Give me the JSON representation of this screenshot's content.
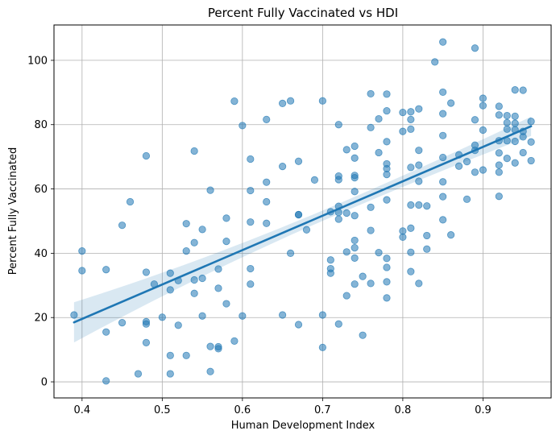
{
  "chart_data": {
    "type": "scatter",
    "title": "Percent Fully Vaccinated vs HDI",
    "xlabel": "Human Development Index",
    "ylabel": "Percent Fully Vaccinated",
    "xlim": [
      0.365,
      0.985
    ],
    "ylim": [
      -5,
      111
    ],
    "xticks": [
      0.4,
      0.5,
      0.6,
      0.7,
      0.8,
      0.9
    ],
    "yticks": [
      0,
      20,
      40,
      60,
      80,
      100
    ],
    "grid": true,
    "colors": {
      "points": "#1f77b4",
      "line": "#1f77b4",
      "band": "#1f77b4"
    },
    "regression": {
      "x": [
        0.39,
        0.96
      ],
      "y": [
        18.5,
        79.5
      ],
      "ci_upper": [
        25.0,
        82.5
      ],
      "ci_lower": [
        12.5,
        76.5
      ]
    },
    "points": [
      [
        0.39,
        20.8
      ],
      [
        0.4,
        40.7
      ],
      [
        0.4,
        34.6
      ],
      [
        0.43,
        34.9
      ],
      [
        0.43,
        15.5
      ],
      [
        0.43,
        0.3
      ],
      [
        0.45,
        48.7
      ],
      [
        0.45,
        18.4
      ],
      [
        0.46,
        56.0
      ],
      [
        0.47,
        2.5
      ],
      [
        0.48,
        70.3
      ],
      [
        0.48,
        34.1
      ],
      [
        0.48,
        18.7
      ],
      [
        0.48,
        18.0
      ],
      [
        0.48,
        12.2
      ],
      [
        0.49,
        30.4
      ],
      [
        0.5,
        20.1
      ],
      [
        0.51,
        33.8
      ],
      [
        0.51,
        28.6
      ],
      [
        0.51,
        8.2
      ],
      [
        0.51,
        2.5
      ],
      [
        0.52,
        31.5
      ],
      [
        0.52,
        17.6
      ],
      [
        0.53,
        49.2
      ],
      [
        0.53,
        40.7
      ],
      [
        0.53,
        8.2
      ],
      [
        0.54,
        71.8
      ],
      [
        0.54,
        43.3
      ],
      [
        0.54,
        31.7
      ],
      [
        0.54,
        27.5
      ],
      [
        0.55,
        47.4
      ],
      [
        0.55,
        32.2
      ],
      [
        0.55,
        20.5
      ],
      [
        0.56,
        59.6
      ],
      [
        0.56,
        11.0
      ],
      [
        0.56,
        3.2
      ],
      [
        0.57,
        35.1
      ],
      [
        0.57,
        29.1
      ],
      [
        0.57,
        10.9
      ],
      [
        0.57,
        10.3
      ],
      [
        0.58,
        50.9
      ],
      [
        0.58,
        43.7
      ],
      [
        0.58,
        24.3
      ],
      [
        0.59,
        87.3
      ],
      [
        0.59,
        12.7
      ],
      [
        0.6,
        79.7
      ],
      [
        0.6,
        20.5
      ],
      [
        0.61,
        69.3
      ],
      [
        0.61,
        59.5
      ],
      [
        0.61,
        49.7
      ],
      [
        0.61,
        35.2
      ],
      [
        0.61,
        30.4
      ],
      [
        0.63,
        81.6
      ],
      [
        0.63,
        62.1
      ],
      [
        0.63,
        56.0
      ],
      [
        0.63,
        49.3
      ],
      [
        0.65,
        86.6
      ],
      [
        0.65,
        67.0
      ],
      [
        0.65,
        20.8
      ],
      [
        0.66,
        87.4
      ],
      [
        0.66,
        40.0
      ],
      [
        0.67,
        68.6
      ],
      [
        0.67,
        52.0
      ],
      [
        0.67,
        52.0
      ],
      [
        0.67,
        17.8
      ],
      [
        0.68,
        47.3
      ],
      [
        0.69,
        62.8
      ],
      [
        0.7,
        87.4
      ],
      [
        0.7,
        20.8
      ],
      [
        0.7,
        10.7
      ],
      [
        0.71,
        52.9
      ],
      [
        0.71,
        37.9
      ],
      [
        0.71,
        35.2
      ],
      [
        0.71,
        33.8
      ],
      [
        0.72,
        80.0
      ],
      [
        0.72,
        64.0
      ],
      [
        0.72,
        62.9
      ],
      [
        0.72,
        54.6
      ],
      [
        0.72,
        52.7
      ],
      [
        0.72,
        50.6
      ],
      [
        0.72,
        18.0
      ],
      [
        0.73,
        72.2
      ],
      [
        0.73,
        52.5
      ],
      [
        0.73,
        40.4
      ],
      [
        0.73,
        26.8
      ],
      [
        0.74,
        73.3
      ],
      [
        0.74,
        69.6
      ],
      [
        0.74,
        64.2
      ],
      [
        0.74,
        63.5
      ],
      [
        0.74,
        59.2
      ],
      [
        0.74,
        51.7
      ],
      [
        0.74,
        44.0
      ],
      [
        0.74,
        41.7
      ],
      [
        0.74,
        38.5
      ],
      [
        0.74,
        30.4
      ],
      [
        0.75,
        32.8
      ],
      [
        0.75,
        14.5
      ],
      [
        0.76,
        89.6
      ],
      [
        0.76,
        79.1
      ],
      [
        0.76,
        54.3
      ],
      [
        0.76,
        47.1
      ],
      [
        0.76,
        30.6
      ],
      [
        0.77,
        81.8
      ],
      [
        0.77,
        71.3
      ],
      [
        0.77,
        40.2
      ],
      [
        0.78,
        89.5
      ],
      [
        0.78,
        84.3
      ],
      [
        0.78,
        74.7
      ],
      [
        0.78,
        67.8
      ],
      [
        0.78,
        66.3
      ],
      [
        0.78,
        64.5
      ],
      [
        0.78,
        56.6
      ],
      [
        0.78,
        38.4
      ],
      [
        0.78,
        35.6
      ],
      [
        0.78,
        31.1
      ],
      [
        0.78,
        26.1
      ],
      [
        0.8,
        83.8
      ],
      [
        0.8,
        77.9
      ],
      [
        0.8,
        46.9
      ],
      [
        0.8,
        45.0
      ],
      [
        0.81,
        84.0
      ],
      [
        0.81,
        81.6
      ],
      [
        0.81,
        78.6
      ],
      [
        0.81,
        66.7
      ],
      [
        0.81,
        55.0
      ],
      [
        0.81,
        47.8
      ],
      [
        0.81,
        40.3
      ],
      [
        0.81,
        34.3
      ],
      [
        0.82,
        84.9
      ],
      [
        0.82,
        72.0
      ],
      [
        0.82,
        67.4
      ],
      [
        0.82,
        62.4
      ],
      [
        0.82,
        55.0
      ],
      [
        0.82,
        30.6
      ],
      [
        0.83,
        54.7
      ],
      [
        0.83,
        45.5
      ],
      [
        0.83,
        41.3
      ],
      [
        0.84,
        99.5
      ],
      [
        0.85,
        105.7
      ],
      [
        0.85,
        90.1
      ],
      [
        0.85,
        83.4
      ],
      [
        0.85,
        76.6
      ],
      [
        0.85,
        69.8
      ],
      [
        0.85,
        62.2
      ],
      [
        0.85,
        57.6
      ],
      [
        0.85,
        50.4
      ],
      [
        0.86,
        86.7
      ],
      [
        0.86,
        45.7
      ],
      [
        0.87,
        70.6
      ],
      [
        0.87,
        67.1
      ],
      [
        0.88,
        68.5
      ],
      [
        0.88,
        56.8
      ],
      [
        0.89,
        103.8
      ],
      [
        0.89,
        81.5
      ],
      [
        0.89,
        73.6
      ],
      [
        0.89,
        72.0
      ],
      [
        0.89,
        65.2
      ],
      [
        0.9,
        88.2
      ],
      [
        0.9,
        85.9
      ],
      [
        0.9,
        78.3
      ],
      [
        0.9,
        65.9
      ],
      [
        0.92,
        85.7
      ],
      [
        0.92,
        83.0
      ],
      [
        0.92,
        75.0
      ],
      [
        0.92,
        71.2
      ],
      [
        0.92,
        67.4
      ],
      [
        0.92,
        65.2
      ],
      [
        0.92,
        57.7
      ],
      [
        0.93,
        82.8
      ],
      [
        0.93,
        80.6
      ],
      [
        0.93,
        78.6
      ],
      [
        0.93,
        75.0
      ],
      [
        0.93,
        69.5
      ],
      [
        0.94,
        90.8
      ],
      [
        0.94,
        82.6
      ],
      [
        0.94,
        80.4
      ],
      [
        0.94,
        78.4
      ],
      [
        0.94,
        74.8
      ],
      [
        0.94,
        68.1
      ],
      [
        0.95,
        90.7
      ],
      [
        0.95,
        77.9
      ],
      [
        0.95,
        76.2
      ],
      [
        0.95,
        71.3
      ],
      [
        0.96,
        81.0
      ],
      [
        0.96,
        74.6
      ],
      [
        0.96,
        68.8
      ]
    ]
  }
}
